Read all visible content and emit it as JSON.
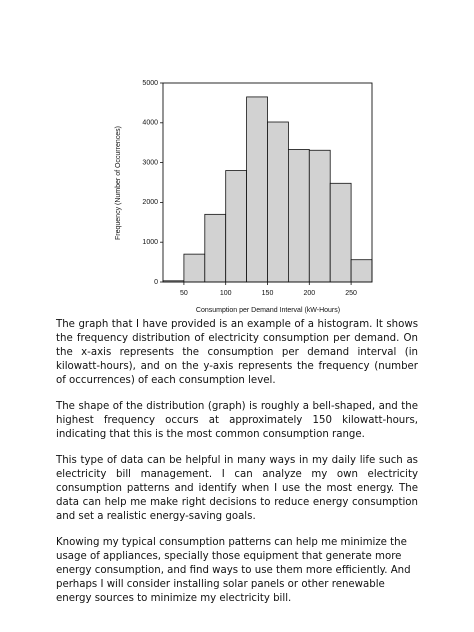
{
  "chart_data": {
    "type": "histogram",
    "x_label": "Consumption per Demand Interval (kW-Hours)",
    "y_label": "Frequency (Number of Occurrences)",
    "bins": [
      25,
      50,
      75,
      100,
      125,
      150,
      175,
      200,
      225,
      250,
      275
    ],
    "values": [
      30,
      700,
      1700,
      2800,
      4650,
      4020,
      3330,
      3310,
      2480,
      560
    ],
    "color": "#d2d2d2",
    "xlim": [
      25,
      275
    ],
    "xticks": [
      50,
      100,
      150,
      200,
      250
    ],
    "ylim": [
      0,
      5000
    ],
    "yticks": [
      0,
      1000,
      2000,
      3000,
      4000,
      5000
    ]
  },
  "paragraphs": [
    "The graph that I have provided is an example of a histogram. It shows the frequency distribution of electricity consumption per demand. On the x-axis represents the consumption per demand interval (in kilowatt-hours), and on the y-axis represents the frequency (number of occurrences) of each consumption level.",
    "The shape of the distribution (graph) is roughly a bell-shaped, and the highest frequency occurs at approximately 150 kilowatt-hours, indicating that this is the most common consumption range.",
    "This type of data can be helpful in many ways in my daily life such as electricity bill management. I can analyze my own electricity consumption patterns and identify when I use the most energy. The data can help me make right decisions to reduce energy consumption and set a realistic energy-saving goals.",
    "Knowing my typical consumption patterns can help me minimize the usage of appliances, specially those equipment that generate more energy consumption, and find ways to use them more efficiently. And perhaps I will consider installing solar panels or other renewable energy sources to minimize my electricity bill."
  ]
}
